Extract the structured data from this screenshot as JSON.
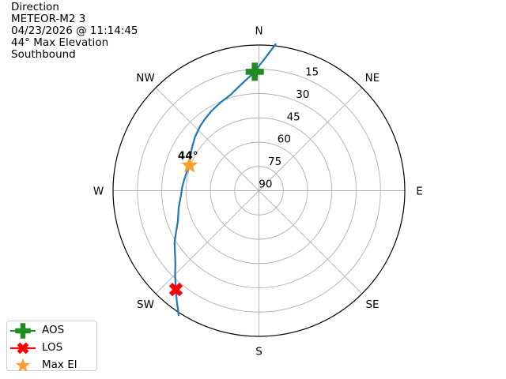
{
  "header": {
    "title": "Direction",
    "satellite": "METEOR-M2 3",
    "datetime": "04/23/2026 @ 11:14:45",
    "max_elevation": "44° Max Elevation",
    "direction": "Southbound"
  },
  "legend": {
    "items": [
      {
        "label": "AOS",
        "marker": "plus",
        "color": "#228B22",
        "with_line": true
      },
      {
        "label": "LOS",
        "marker": "x",
        "color": "#ff0000",
        "with_line": true
      },
      {
        "label": "Max El",
        "marker": "star",
        "color": "#ff9e2b",
        "with_line": false
      }
    ]
  },
  "chart_data": {
    "type": "polar-sky-track",
    "title": "Direction",
    "compass_labels": [
      "N",
      "NE",
      "E",
      "SE",
      "S",
      "SW",
      "W",
      "NW"
    ],
    "compass_azimuths": [
      0,
      45,
      90,
      135,
      180,
      225,
      270,
      315
    ],
    "elevation_ticks": [
      15,
      30,
      45,
      60,
      75,
      90
    ],
    "elevation_range_deg": [
      0,
      90
    ],
    "grid_color": "#b0b0b0",
    "outline_color": "#000000",
    "track": {
      "name": "pass-track",
      "color": "#1f77b4",
      "points_az_el": [
        [
          6.5,
          -1
        ],
        [
          4.5,
          4
        ],
        [
          2.6,
          8.2
        ],
        [
          0.3,
          12.5
        ],
        [
          358,
          16.5
        ],
        [
          354.8,
          19.8
        ],
        [
          351.5,
          22.7
        ],
        [
          347.6,
          25.6
        ],
        [
          343.6,
          28.2
        ],
        [
          336.6,
          30.6
        ],
        [
          329.6,
          32.6
        ],
        [
          323.6,
          34.4
        ],
        [
          317.6,
          36.1
        ],
        [
          310,
          38.5
        ],
        [
          303,
          40.8
        ],
        [
          296,
          42.8
        ],
        [
          290,
          44.4
        ],
        [
          283,
          43.9
        ],
        [
          277,
          43.2
        ],
        [
          272,
          42.5
        ],
        [
          266.8,
          41.9
        ],
        [
          258,
          39.4
        ],
        [
          249.4,
          36.6
        ],
        [
          243.6,
          33
        ],
        [
          238.6,
          29
        ],
        [
          233.4,
          25.5
        ],
        [
          229,
          21.7
        ],
        [
          224.5,
          16.2
        ],
        [
          220,
          10.3
        ],
        [
          216.6,
          5
        ],
        [
          213.8,
          0.5
        ],
        [
          212.8,
          -1.5
        ]
      ]
    },
    "markers": [
      {
        "name": "AOS",
        "shape": "plus",
        "color": "#228B22",
        "az": 358,
        "el": 16.5
      },
      {
        "name": "LOS",
        "shape": "x",
        "color": "#ff0000",
        "az": 220,
        "el": 10.3
      },
      {
        "name": "Max El",
        "shape": "star",
        "color": "#ff9e2b",
        "az": 290,
        "el": 44.4,
        "label": "44°"
      }
    ]
  }
}
